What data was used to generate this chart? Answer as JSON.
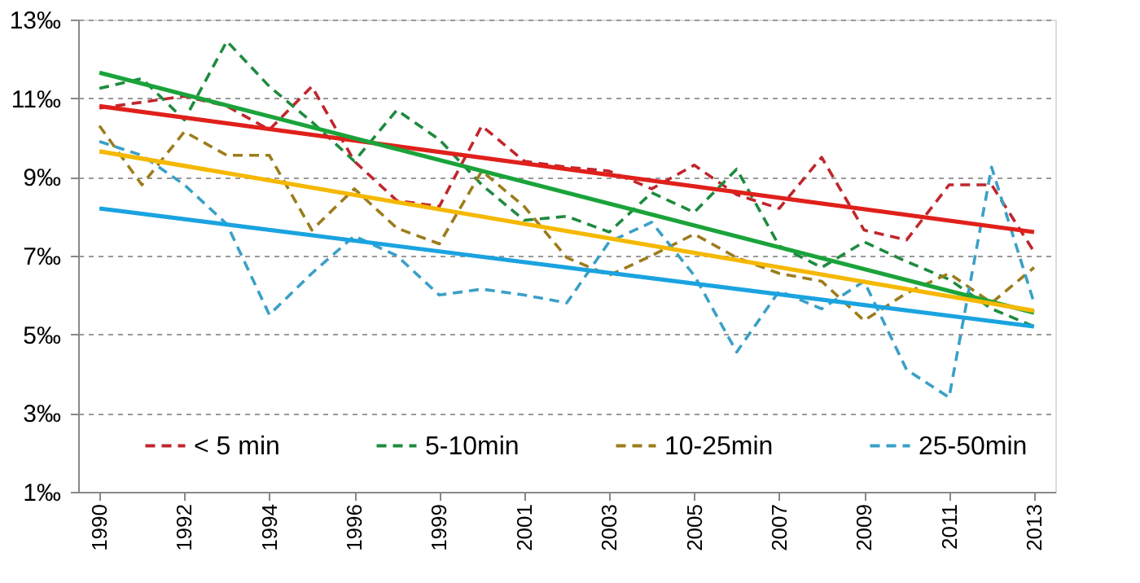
{
  "chart_data": {
    "type": "line",
    "categories": [
      "1990",
      null,
      "1992",
      null,
      "1994",
      null,
      "1996",
      null,
      "1999",
      null,
      "2001",
      null,
      "2003",
      null,
      "2005",
      null,
      "2007",
      null,
      "2009",
      null,
      "2011",
      null,
      "2013"
    ],
    "series": [
      {
        "name": "< 5 min",
        "color": "#c0262c",
        "line_style": "dashed",
        "values": [
          10.75,
          10.9,
          11.05,
          10.8,
          10.2,
          11.3,
          9.4,
          8.4,
          8.25,
          10.3,
          9.4,
          9.25,
          9.15,
          8.7,
          9.3,
          8.55,
          8.2,
          9.5,
          7.65,
          7.4,
          8.8,
          8.8,
          7.1
        ]
      },
      {
        "name": "5-10min",
        "color": "#1e8a3e",
        "line_style": "dashed",
        "values": [
          11.25,
          11.5,
          10.45,
          12.45,
          11.3,
          10.4,
          9.4,
          10.7,
          9.95,
          8.8,
          7.9,
          8.0,
          7.6,
          8.6,
          8.1,
          9.2,
          7.25,
          6.7,
          7.35,
          6.85,
          6.4,
          5.65,
          5.2
        ]
      },
      {
        "name": "10-25min",
        "color": "#9c7c1c",
        "line_style": "dashed",
        "values": [
          10.3,
          8.8,
          10.15,
          9.55,
          9.55,
          7.65,
          8.7,
          7.7,
          7.3,
          9.15,
          8.25,
          6.95,
          6.5,
          7.0,
          7.55,
          6.95,
          6.55,
          6.35,
          5.35,
          6.05,
          6.55,
          5.8,
          6.7
        ]
      },
      {
        "name": "25-50min",
        "color": "#3aa0c8",
        "line_style": "dashed",
        "values": [
          9.9,
          9.55,
          8.8,
          7.8,
          5.5,
          6.55,
          7.5,
          7.0,
          6.0,
          6.15,
          6.0,
          5.8,
          7.35,
          7.85,
          6.5,
          4.55,
          6.1,
          5.65,
          6.35,
          4.1,
          3.4,
          9.25,
          5.8
        ]
      },
      {
        "color": "#e0201b",
        "line_style": "solid",
        "values": [
          10.8,
          null,
          null,
          null,
          null,
          null,
          null,
          null,
          null,
          null,
          null,
          null,
          null,
          null,
          null,
          null,
          null,
          null,
          null,
          null,
          null,
          null,
          7.6
        ]
      },
      {
        "color": "#1aa33a",
        "line_style": "solid",
        "values": [
          11.65,
          null,
          null,
          null,
          null,
          null,
          null,
          null,
          null,
          null,
          null,
          null,
          null,
          null,
          null,
          null,
          null,
          null,
          null,
          null,
          null,
          null,
          5.55
        ]
      },
      {
        "color": "#f5b800",
        "line_style": "solid",
        "values": [
          9.65,
          null,
          null,
          null,
          null,
          null,
          null,
          null,
          null,
          null,
          null,
          null,
          null,
          null,
          null,
          null,
          null,
          null,
          null,
          null,
          null,
          null,
          5.6
        ]
      },
      {
        "color": "#1aa3e0",
        "line_style": "solid",
        "values": [
          8.2,
          null,
          null,
          null,
          null,
          null,
          null,
          null,
          null,
          null,
          null,
          null,
          null,
          null,
          null,
          null,
          null,
          null,
          null,
          null,
          null,
          null,
          5.2
        ]
      }
    ],
    "ylim": [
      1,
      13
    ],
    "yticks": [
      {
        "value": 1,
        "label": "1‰"
      },
      {
        "value": 3,
        "label": "3‰"
      },
      {
        "value": 5,
        "label": "5‰"
      },
      {
        "value": 7,
        "label": "7‰"
      },
      {
        "value": 9,
        "label": "9‰"
      },
      {
        "value": 11,
        "label": "11‰"
      },
      {
        "value": 13,
        "label": "13‰"
      }
    ],
    "grid": "y",
    "legend": "bottom",
    "marker": "none"
  }
}
